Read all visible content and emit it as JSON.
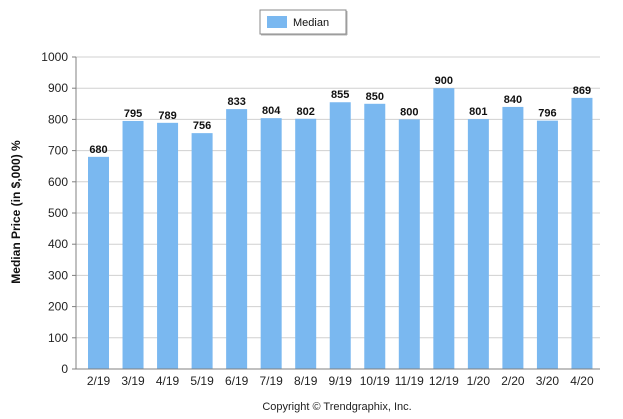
{
  "chart_data": {
    "type": "bar",
    "categories": [
      "2/19",
      "3/19",
      "4/19",
      "5/19",
      "6/19",
      "7/19",
      "8/19",
      "9/19",
      "10/19",
      "11/19",
      "12/19",
      "1/20",
      "2/20",
      "3/20",
      "4/20"
    ],
    "series": [
      {
        "name": "Median",
        "values": [
          680,
          795,
          789,
          756,
          833,
          804,
          802,
          855,
          850,
          800,
          900,
          801,
          840,
          796,
          869
        ]
      }
    ],
    "title": "",
    "xlabel": "",
    "ylabel": "Median Price (in $,000) %",
    "ylim": [
      0,
      1000
    ],
    "yticks": [
      0,
      100,
      200,
      300,
      400,
      500,
      600,
      700,
      800,
      900,
      1000
    ],
    "grid": true,
    "legend_position": "top-center",
    "data_labels": true,
    "colors": {
      "bar": "#7ab8f0",
      "grid": "#d0d0d0",
      "axis": "#808080"
    }
  },
  "footer": {
    "copyright": "Copyright © Trendgraphix, Inc."
  }
}
